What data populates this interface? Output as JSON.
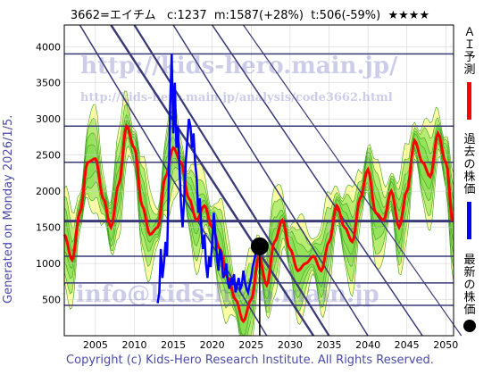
{
  "header": {
    "title": "3662=エイチム   c:1237  m:1587(+28%)  t:506(-59%)  ★★★★"
  },
  "side": {
    "generated": "Generated on Monday 2026/1/5."
  },
  "footer": {
    "copyright": "Copyright (c) Kids-Hero Research Institute. All Rights Reserved."
  },
  "watermarks": {
    "top": "http://kids-hero.main.jp/",
    "mid": "http://kids-hero.main.jp/analysis/code3662.html",
    "bottom": "info@kids-hero.main.jp"
  },
  "legend": {
    "ai": "ＡＩ予測",
    "past": "過去の株価",
    "latest": "最新の株価"
  },
  "colors": {
    "ai": "#ff0000",
    "past": "#0000ff",
    "band_green": "#7ddc4a",
    "band_yellow": "#ffff99",
    "hline": "#3a3a78",
    "background": "#ffffff",
    "grid": "#cccccc"
  },
  "chart_data": {
    "type": "line",
    "xlim": [
      2001,
      2051
    ],
    "ylim": [
      0,
      4300
    ],
    "x_ticks": [
      2005,
      2010,
      2015,
      2020,
      2025,
      2030,
      2035,
      2040,
      2045,
      2050
    ],
    "y_ticks": [
      500,
      1000,
      1500,
      2000,
      2500,
      3000,
      3500,
      4000
    ],
    "horizontal_levels": [
      3900,
      2900,
      2400,
      1587,
      1100,
      730,
      420
    ],
    "current": {
      "year": 2026.1,
      "value": 1237
    },
    "series": [
      {
        "name": "過去の株価",
        "x": [
          2013.0,
          2013.2,
          2013.4,
          2013.6,
          2013.8,
          2014.0,
          2014.2,
          2014.4,
          2014.6,
          2014.8,
          2015.0,
          2015.2,
          2015.4,
          2015.6,
          2015.8,
          2016.0,
          2016.2,
          2016.4,
          2016.6,
          2016.8,
          2017.0,
          2017.2,
          2017.4,
          2017.6,
          2017.8,
          2018.0,
          2018.2,
          2018.4,
          2018.6,
          2018.8,
          2019.0,
          2019.2,
          2019.4,
          2019.6,
          2019.8,
          2020.0,
          2020.2,
          2020.4,
          2020.6,
          2020.8,
          2021.0,
          2021.2,
          2021.4,
          2021.6,
          2021.8,
          2022.0,
          2022.2,
          2022.4,
          2022.6,
          2022.8,
          2023.0,
          2023.2,
          2023.4,
          2023.6,
          2023.8,
          2024.0,
          2024.2,
          2024.4,
          2024.6,
          2024.8,
          2025.0,
          2025.2,
          2025.4,
          2025.6,
          2025.8,
          2026.0
        ],
        "values": [
          450,
          600,
          1200,
          800,
          1000,
          1300,
          1100,
          2000,
          3200,
          3900,
          2800,
          3500,
          2600,
          2900,
          2300,
          1800,
          1500,
          1900,
          2400,
          2700,
          3000,
          2900,
          2600,
          2800,
          2400,
          2200,
          1700,
          1900,
          1500,
          1200,
          1400,
          1000,
          800,
          1100,
          950,
          1300,
          1700,
          1400,
          1100,
          900,
          1200,
          1100,
          800,
          850,
          1000,
          750,
          650,
          800,
          700,
          850,
          600,
          700,
          800,
          650,
          700,
          900,
          750,
          650,
          600,
          700,
          800,
          950,
          1050,
          1150,
          1200,
          1237
        ]
      },
      {
        "name": "ＡＩ予測",
        "x": [
          2001,
          2002,
          2003,
          2004,
          2005,
          2006,
          2007,
          2008,
          2009,
          2010,
          2011,
          2012,
          2013,
          2014,
          2015,
          2016,
          2017,
          2018,
          2019,
          2020,
          2021,
          2022,
          2023,
          2024,
          2025,
          2026,
          2027,
          2028,
          2029,
          2030,
          2031,
          2032,
          2033,
          2034,
          2035,
          2036,
          2037,
          2038,
          2039,
          2040,
          2041,
          2042,
          2043,
          2044,
          2045,
          2046,
          2047,
          2048,
          2049,
          2050,
          2051
        ],
        "values": [
          1400,
          1050,
          1700,
          2400,
          2450,
          1900,
          1500,
          2100,
          2900,
          2600,
          1800,
          1400,
          1500,
          2200,
          2600,
          2400,
          1900,
          1600,
          1800,
          1500,
          1200,
          800,
          500,
          200,
          500,
          1100,
          700,
          1300,
          1600,
          1200,
          900,
          1000,
          1100,
          900,
          1300,
          1800,
          1500,
          1300,
          1900,
          2300,
          1700,
          1600,
          2000,
          1500,
          2000,
          2700,
          2400,
          2200,
          2800,
          2400,
          1500
        ]
      }
    ]
  }
}
